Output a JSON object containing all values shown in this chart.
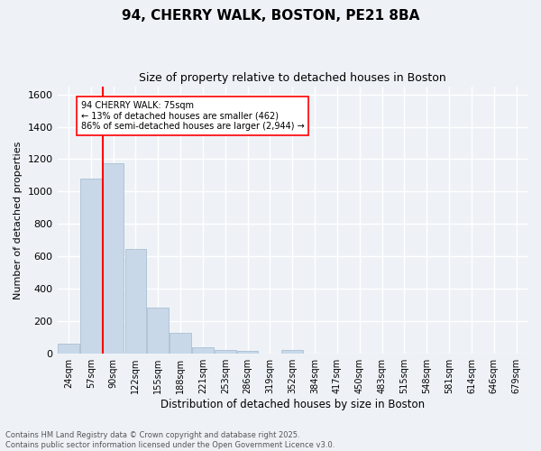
{
  "title": "94, CHERRY WALK, BOSTON, PE21 8BA",
  "subtitle": "Size of property relative to detached houses in Boston",
  "xlabel": "Distribution of detached houses by size in Boston",
  "ylabel": "Number of detached properties",
  "bar_labels": [
    "24sqm",
    "57sqm",
    "90sqm",
    "122sqm",
    "155sqm",
    "188sqm",
    "221sqm",
    "253sqm",
    "286sqm",
    "319sqm",
    "352sqm",
    "384sqm",
    "417sqm",
    "450sqm",
    "483sqm",
    "515sqm",
    "548sqm",
    "581sqm",
    "614sqm",
    "646sqm",
    "679sqm"
  ],
  "bar_values": [
    65,
    1080,
    1175,
    645,
    285,
    130,
    40,
    25,
    20,
    0,
    25,
    0,
    0,
    0,
    0,
    0,
    0,
    0,
    0,
    0,
    0
  ],
  "bar_color": "#c8d8e8",
  "bar_edgecolor": "#a0b8cc",
  "ylim": [
    0,
    1650
  ],
  "yticks": [
    0,
    200,
    400,
    600,
    800,
    1000,
    1200,
    1400,
    1600
  ],
  "annotation_text": "94 CHERRY WALK: 75sqm\n← 13% of detached houses are smaller (462)\n86% of semi-detached houses are larger (2,944) →",
  "footer_line1": "Contains HM Land Registry data © Crown copyright and database right 2025.",
  "footer_line2": "Contains public sector information licensed under the Open Government Licence v3.0.",
  "background_color": "#eef2f7",
  "grid_color": "#ffffff"
}
